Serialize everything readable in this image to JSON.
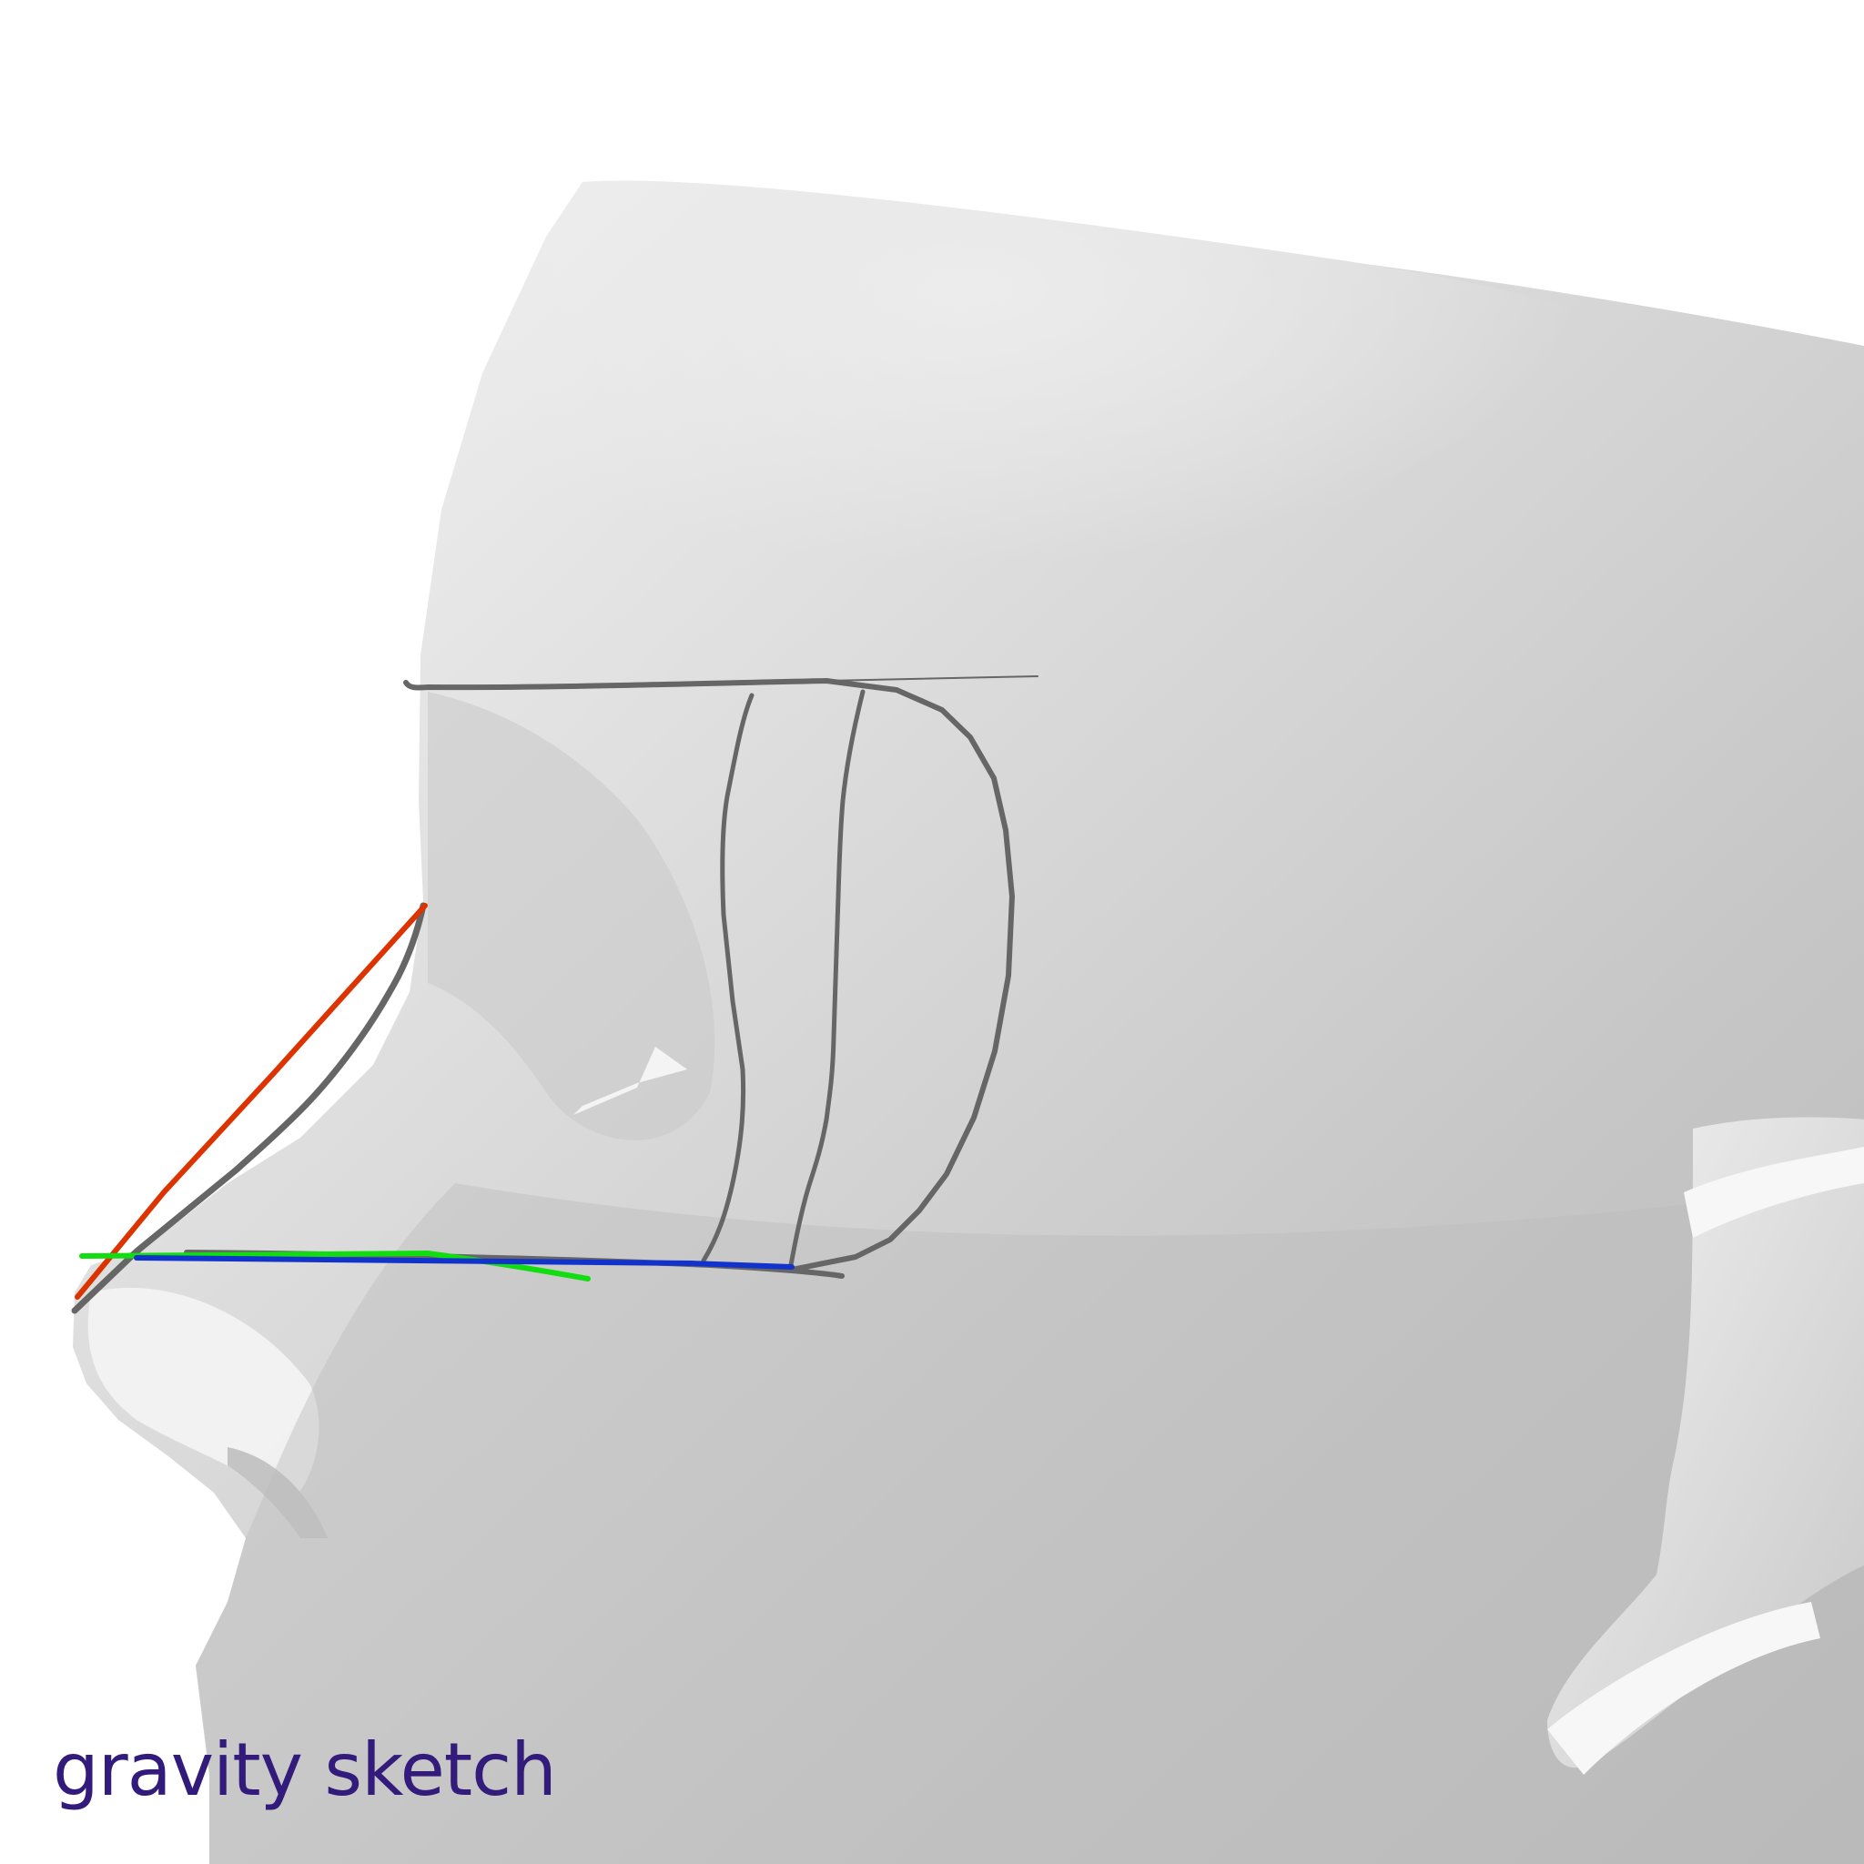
{
  "app": {
    "watermark": "gravity sketch"
  },
  "scene": {
    "model": "head-mesh",
    "tool": "stroke-curve",
    "axis_gizmo": {
      "x_axis_color": "#dd3300",
      "y_axis_color": "#11dd11",
      "z_axis_color": "#1133cc"
    },
    "stroke_color": "#666666",
    "mesh_colors": {
      "highlight": "#f4f4f4",
      "mid": "#d6d6d6",
      "shadow": "#b9b9b9"
    },
    "watermark_color": "#321b7a"
  }
}
